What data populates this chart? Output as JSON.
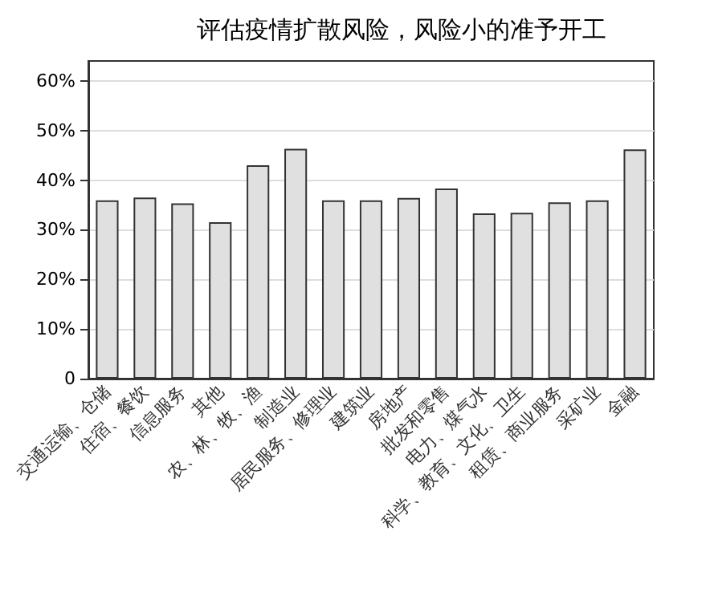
{
  "chart_data": {
    "type": "bar",
    "title": "评估疫情扩散风险，风险小的准予开工",
    "categories": [
      "交通运输、仓储",
      "住宿、餐饮",
      "信息服务",
      "其他",
      "农、林、牧、渔",
      "制造业",
      "居民服务、修理业",
      "建筑业",
      "房地产",
      "批发和零售",
      "电力、煤气水",
      "科学、教育、文化、卫生",
      "租赁、商业服务",
      "采矿业",
      "金融"
    ],
    "values": [
      35.9,
      36.5,
      35.3,
      31.5,
      43.0,
      46.3,
      35.9,
      35.9,
      36.4,
      38.3,
      33.3,
      33.4,
      35.5,
      35.9,
      46.2
    ],
    "color": "#e0e0e0",
    "ylim": [
      0,
      64
    ],
    "yticks": [
      {
        "value": 0,
        "label": "0"
      },
      {
        "value": 10,
        "label": "10%"
      },
      {
        "value": 20,
        "label": "20%"
      },
      {
        "value": 30,
        "label": "30%"
      },
      {
        "value": 40,
        "label": "40%"
      },
      {
        "value": 50,
        "label": "50%"
      },
      {
        "value": 60,
        "label": "60%"
      }
    ],
    "grid": "y"
  }
}
